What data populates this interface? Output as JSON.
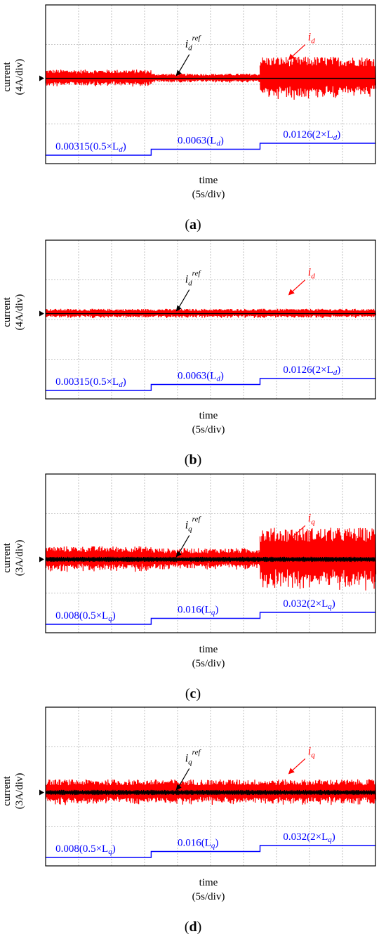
{
  "chart_data": [
    {
      "panel": "a",
      "type": "line",
      "panel_label_open": "(",
      "panel_label_letter": "a",
      "panel_label_close": ")",
      "ylabel_line1": "current",
      "ylabel_line2": "(4A/div)",
      "xlabel_line1": "time",
      "xlabel_line2": "(5s/div)",
      "x_divisions": 10,
      "y_divisions": 4,
      "segments": [
        {
          "x_start": 0,
          "x_end": 3.2,
          "i_ripple_half_divs": 0.22,
          "inductance_label": "0.00315(0.5×L",
          "inductance_sub": "d",
          "inductance_tail": ")"
        },
        {
          "x_start": 3.2,
          "x_end": 6.5,
          "i_ripple_half_divs": 0.12,
          "inductance_label": "0.0063(L",
          "inductance_sub": "d",
          "inductance_tail": ")"
        },
        {
          "x_start": 6.5,
          "x_end": 10,
          "i_ripple_half_divs": 0.55,
          "inductance_label": "0.0126(2×L",
          "inductance_sub": "d",
          "inductance_tail": ")"
        }
      ],
      "ref_label": "i",
      "ref_sub": "d",
      "ref_sup": "ref",
      "meas_label": "i",
      "meas_sub": "d"
    },
    {
      "panel": "b",
      "type": "line",
      "panel_label_open": "(",
      "panel_label_letter": "b",
      "panel_label_close": ")",
      "ylabel_line1": "current",
      "ylabel_line2": "(4A/div)",
      "xlabel_line1": "time",
      "xlabel_line2": "(5s/div)",
      "x_divisions": 10,
      "y_divisions": 4,
      "segments": [
        {
          "x_start": 0,
          "x_end": 3.2,
          "i_ripple_half_divs": 0.12,
          "inductance_label": "0.00315(0.5×L",
          "inductance_sub": "d",
          "inductance_tail": ")"
        },
        {
          "x_start": 3.2,
          "x_end": 6.5,
          "i_ripple_half_divs": 0.12,
          "inductance_label": "0.0063(L",
          "inductance_sub": "d",
          "inductance_tail": ")"
        },
        {
          "x_start": 6.5,
          "x_end": 10,
          "i_ripple_half_divs": 0.12,
          "inductance_label": "0.0126(2×L",
          "inductance_sub": "d",
          "inductance_tail": ")"
        }
      ],
      "ref_label": "i",
      "ref_sub": "d",
      "ref_sup": "ref",
      "meas_label": "i",
      "meas_sub": "d"
    },
    {
      "panel": "c",
      "type": "line",
      "panel_label_open": "(",
      "panel_label_letter": "c",
      "panel_label_close": ")",
      "ylabel_line1": "current",
      "ylabel_line2": "(3A/div)",
      "xlabel_line1": "time",
      "xlabel_line2": "(5s/div)",
      "x_divisions": 10,
      "y_divisions": 4,
      "segments": [
        {
          "x_start": 0,
          "x_end": 3.2,
          "i_ripple_half_divs": 0.33,
          "inductance_label": "0.008(0.5×L",
          "inductance_sub": "q",
          "inductance_tail": ")"
        },
        {
          "x_start": 3.2,
          "x_end": 6.5,
          "i_ripple_half_divs": 0.28,
          "inductance_label": "0.016(L",
          "inductance_sub": "q",
          "inductance_tail": ")"
        },
        {
          "x_start": 6.5,
          "x_end": 10,
          "i_ripple_half_divs": 0.8,
          "inductance_label": "0.032(2×L",
          "inductance_sub": "q",
          "inductance_tail": ")"
        }
      ],
      "ref_label": "i",
      "ref_sub": "q",
      "ref_sup": "ref",
      "meas_label": "i",
      "meas_sub": "q"
    },
    {
      "panel": "d",
      "type": "line",
      "panel_label_open": "(",
      "panel_label_letter": "d",
      "panel_label_close": ")",
      "ylabel_line1": "current",
      "ylabel_line2": "(3A/div)",
      "xlabel_line1": "time",
      "xlabel_line2": "(5s/div)",
      "x_divisions": 10,
      "y_divisions": 4,
      "segments": [
        {
          "x_start": 0,
          "x_end": 3.2,
          "i_ripple_half_divs": 0.33,
          "inductance_label": "0.008(0.5×L",
          "inductance_sub": "q",
          "inductance_tail": ")"
        },
        {
          "x_start": 3.2,
          "x_end": 6.5,
          "i_ripple_half_divs": 0.33,
          "inductance_label": "0.016(L",
          "inductance_sub": "q",
          "inductance_tail": ")"
        },
        {
          "x_start": 6.5,
          "x_end": 10,
          "i_ripple_half_divs": 0.33,
          "inductance_label": "0.032(2×L",
          "inductance_sub": "q",
          "inductance_tail": ")"
        }
      ],
      "ref_label": "i",
      "ref_sub": "q",
      "ref_sup": "ref",
      "meas_label": "i",
      "meas_sub": "q"
    }
  ],
  "colors": {
    "measured": "#ff0000",
    "reference": "#000000",
    "inductance": "#0000ff",
    "grid": "#b0b0b0",
    "frame": "#000000"
  }
}
